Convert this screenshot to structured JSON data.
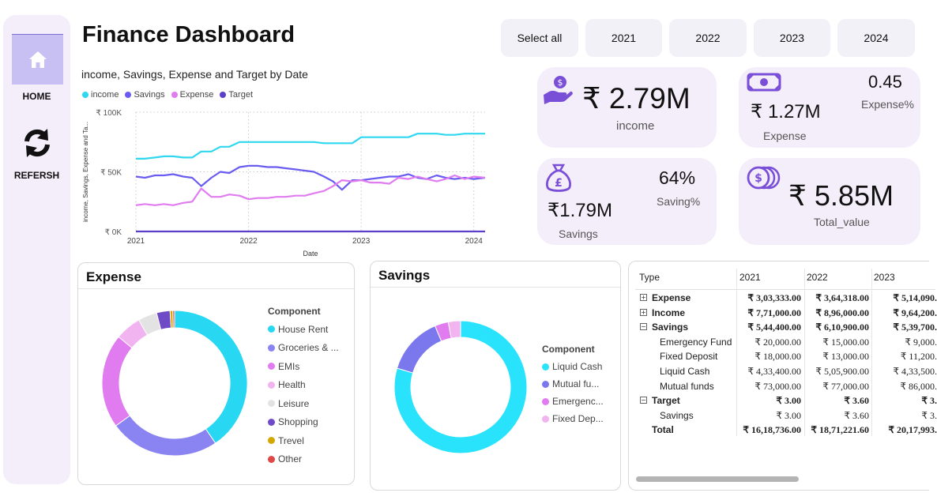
{
  "sidebar": {
    "home_label": "HOME",
    "refresh_label": "REFERSH"
  },
  "page": {
    "title": "Finance Dashboard"
  },
  "year_filter": {
    "select_all": "Select all",
    "years": [
      "2021",
      "2022",
      "2023",
      "2024"
    ]
  },
  "kpis": {
    "income": {
      "value": "₹ 2.79M",
      "label": "income"
    },
    "expense": {
      "value": "₹ 1.27M",
      "label": "Expense",
      "pct_value": "0.45",
      "pct_label": "Expense%"
    },
    "savings": {
      "value": "₹1.79M",
      "label": "Savings",
      "pct_value": "64%",
      "pct_label": "Saving%"
    },
    "total": {
      "value": "₹ 5.85M",
      "label": "Total_value"
    }
  },
  "line_chart": {
    "title": "income, Savings, Expense and Target by Date",
    "xlabel": "Date",
    "ylabel": "income, Savings, Expense and Ta...",
    "legend": [
      "income",
      "Savings",
      "Expense",
      "Target"
    ]
  },
  "chart_data": [
    {
      "type": "line",
      "title": "income, Savings, Expense and Target by Date",
      "xlabel": "Date",
      "ylabel": "income, Savings, Expense and Ta...",
      "y_tick_labels": [
        "₹ 0K",
        "₹ 50K",
        "₹ 100K"
      ],
      "x_tick_labels": [
        "2021",
        "2022",
        "2023",
        "2024"
      ],
      "ylim": [
        0,
        100000
      ],
      "xlim": [
        2021.0,
        2024.1
      ],
      "grid": true,
      "legend_position": "top-left",
      "series": [
        {
          "name": "income",
          "color": "#2fd7ef",
          "x": [
            2021.0,
            2021.08,
            2021.17,
            2021.25,
            2021.33,
            2021.42,
            2021.5,
            2021.58,
            2021.67,
            2021.75,
            2021.83,
            2021.92,
            2022.0,
            2022.08,
            2022.17,
            2022.25,
            2022.33,
            2022.42,
            2022.5,
            2022.58,
            2022.67,
            2022.75,
            2022.83,
            2022.92,
            2023.0,
            2023.08,
            2023.17,
            2023.25,
            2023.33,
            2023.42,
            2023.5,
            2023.58,
            2023.67,
            2023.75,
            2023.83,
            2023.92,
            2024.0,
            2024.1
          ],
          "y": [
            61000,
            61000,
            62000,
            63000,
            63000,
            62000,
            62000,
            67000,
            67000,
            71000,
            71000,
            75000,
            75000,
            75000,
            75000,
            75000,
            75000,
            75000,
            75000,
            75000,
            74000,
            74000,
            74000,
            74000,
            79000,
            79000,
            79000,
            79000,
            79000,
            79000,
            82000,
            82000,
            82000,
            81000,
            81000,
            82000,
            82000,
            82000
          ]
        },
        {
          "name": "Savings",
          "color": "#6a5cf0",
          "x": [
            2021.0,
            2021.08,
            2021.17,
            2021.25,
            2021.33,
            2021.42,
            2021.5,
            2021.58,
            2021.67,
            2021.75,
            2021.83,
            2021.92,
            2022.0,
            2022.08,
            2022.17,
            2022.25,
            2022.33,
            2022.42,
            2022.5,
            2022.58,
            2022.67,
            2022.75,
            2022.83,
            2022.92,
            2023.0,
            2023.08,
            2023.17,
            2023.25,
            2023.33,
            2023.42,
            2023.5,
            2023.58,
            2023.67,
            2023.75,
            2023.83,
            2023.92,
            2024.0,
            2024.1
          ],
          "y": [
            46000,
            45000,
            47000,
            47000,
            48000,
            46000,
            45000,
            38000,
            45000,
            50000,
            49000,
            54000,
            55000,
            55000,
            54000,
            54000,
            53000,
            52000,
            51000,
            50000,
            46000,
            42000,
            35000,
            43000,
            43000,
            44000,
            45000,
            46000,
            46000,
            48000,
            45000,
            44000,
            47000,
            45000,
            44000,
            45000,
            44000,
            45000
          ]
        },
        {
          "name": "Expense",
          "color": "#e07cf0",
          "x": [
            2021.0,
            2021.08,
            2021.17,
            2021.25,
            2021.33,
            2021.42,
            2021.5,
            2021.58,
            2021.67,
            2021.75,
            2021.83,
            2021.92,
            2022.0,
            2022.08,
            2022.17,
            2022.25,
            2022.33,
            2022.42,
            2022.5,
            2022.58,
            2022.67,
            2022.75,
            2022.83,
            2022.92,
            2023.0,
            2023.08,
            2023.17,
            2023.25,
            2023.33,
            2023.42,
            2023.5,
            2023.58,
            2023.67,
            2023.75,
            2023.83,
            2023.92,
            2024.0,
            2024.1
          ],
          "y": [
            22000,
            23000,
            22000,
            23000,
            22000,
            24000,
            25000,
            36000,
            29000,
            29000,
            31000,
            30000,
            27000,
            28000,
            28000,
            29000,
            29000,
            30000,
            30000,
            32000,
            34000,
            38000,
            43000,
            42000,
            43000,
            41000,
            41000,
            40000,
            45000,
            44000,
            46000,
            44000,
            42000,
            44000,
            47000,
            44000,
            46000,
            45000
          ]
        },
        {
          "name": "Target",
          "color": "#5b3fc7",
          "x": [
            2021.0,
            2024.1
          ],
          "y": [
            3,
            3
          ]
        }
      ]
    },
    {
      "type": "pie",
      "title": "Expense",
      "legend_title": "Component",
      "categories": [
        "House Rent",
        "Groceries & ...",
        "EMIs",
        "Health",
        "Leisure",
        "Shopping",
        "Trevel",
        "Other"
      ],
      "values": [
        40.5,
        24.5,
        21.0,
        5.8,
        4.2,
        3.0,
        0.6,
        0.4
      ],
      "colors": [
        "#28d7f2",
        "#8a83f2",
        "#e07cf0",
        "#f1b4f0",
        "#e3e3e3",
        "#6f4ac6",
        "#d4a800",
        "#e04848"
      ]
    },
    {
      "type": "pie",
      "title": "Savings",
      "legend_title": "Component",
      "categories": [
        "Liquid Cash",
        "Mutual fu...",
        "Emergenc...",
        "Fixed Dep..."
      ],
      "values": [
        79.6,
        14.1,
        3.3,
        3.0
      ],
      "colors": [
        "#28e3fb",
        "#7b78ee",
        "#e07cf0",
        "#f1b4f0"
      ]
    }
  ],
  "matrix": {
    "headers": [
      "Type",
      "2021",
      "2022",
      "2023"
    ],
    "rows": [
      {
        "type": "Expense",
        "level": 0,
        "expander": "+",
        "bold": true,
        "values": [
          "₹ 3,03,333.00",
          "₹ 3,64,318.00",
          "₹ 5,14,090."
        ]
      },
      {
        "type": "Income",
        "level": 0,
        "expander": "+",
        "bold": true,
        "values": [
          "₹ 7,71,000.00",
          "₹ 8,96,000.00",
          "₹ 9,64,200."
        ]
      },
      {
        "type": "Savings",
        "level": 0,
        "expander": "−",
        "bold": true,
        "values": [
          "₹ 5,44,400.00",
          "₹ 6,10,900.00",
          "₹ 5,39,700."
        ]
      },
      {
        "type": "Emergency Fund",
        "level": 1,
        "expander": "",
        "bold": false,
        "values": [
          "₹ 20,000.00",
          "₹ 15,000.00",
          "₹ 9,000."
        ]
      },
      {
        "type": "Fixed Deposit",
        "level": 1,
        "expander": "",
        "bold": false,
        "values": [
          "₹ 18,000.00",
          "₹ 13,000.00",
          "₹ 11,200."
        ]
      },
      {
        "type": "Liquid Cash",
        "level": 1,
        "expander": "",
        "bold": false,
        "values": [
          "₹ 4,33,400.00",
          "₹ 5,05,900.00",
          "₹ 4,33,500."
        ]
      },
      {
        "type": "Mutual funds",
        "level": 1,
        "expander": "",
        "bold": false,
        "values": [
          "₹ 73,000.00",
          "₹ 77,000.00",
          "₹ 86,000."
        ]
      },
      {
        "type": "Target",
        "level": 0,
        "expander": "−",
        "bold": true,
        "values": [
          "₹ 3.00",
          "₹ 3.60",
          "₹ 3."
        ]
      },
      {
        "type": "Savings",
        "level": 1,
        "expander": "",
        "bold": false,
        "values": [
          "₹ 3.00",
          "₹ 3.60",
          "₹ 3."
        ]
      },
      {
        "type": "Total",
        "level": 0,
        "expander": "",
        "bold": true,
        "values": [
          "₹ 16,18,736.00",
          "₹ 18,71,221.60",
          "₹ 20,17,993."
        ]
      }
    ]
  },
  "colors": {
    "accent": "#6f4ac6",
    "card_bg": "#f4eefa"
  }
}
